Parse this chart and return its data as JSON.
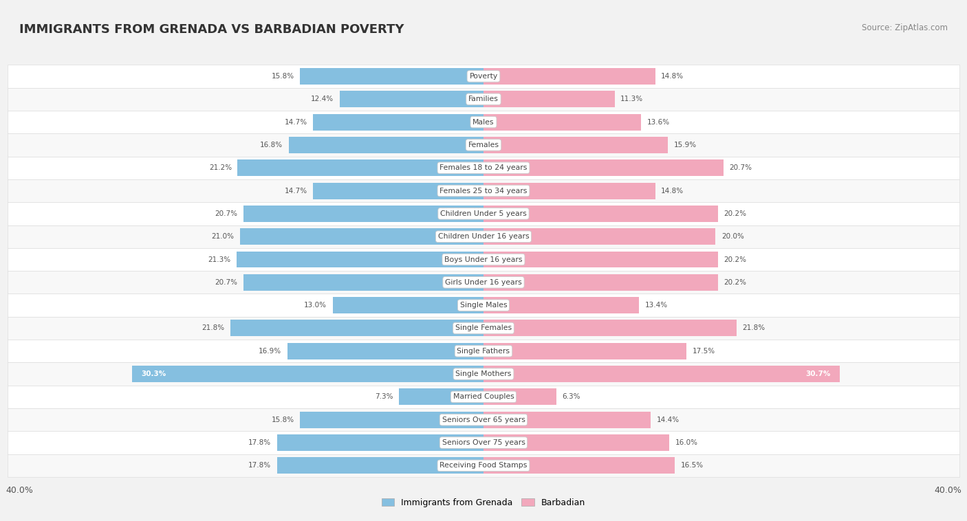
{
  "title": "IMMIGRANTS FROM GRENADA VS BARBADIAN POVERTY",
  "source": "Source: ZipAtlas.com",
  "categories": [
    "Poverty",
    "Families",
    "Males",
    "Females",
    "Females 18 to 24 years",
    "Females 25 to 34 years",
    "Children Under 5 years",
    "Children Under 16 years",
    "Boys Under 16 years",
    "Girls Under 16 years",
    "Single Males",
    "Single Females",
    "Single Fathers",
    "Single Mothers",
    "Married Couples",
    "Seniors Over 65 years",
    "Seniors Over 75 years",
    "Receiving Food Stamps"
  ],
  "grenada_values": [
    15.8,
    12.4,
    14.7,
    16.8,
    21.2,
    14.7,
    20.7,
    21.0,
    21.3,
    20.7,
    13.0,
    21.8,
    16.9,
    30.3,
    7.3,
    15.8,
    17.8,
    17.8
  ],
  "barbadian_values": [
    14.8,
    11.3,
    13.6,
    15.9,
    20.7,
    14.8,
    20.2,
    20.0,
    20.2,
    20.2,
    13.4,
    21.8,
    17.5,
    30.7,
    6.3,
    14.4,
    16.0,
    16.5
  ],
  "grenada_color": "#85BFE0",
  "barbadian_color": "#F2A8BC",
  "grenada_label": "Immigrants from Grenada",
  "barbadian_label": "Barbadian",
  "x_max": 40.0,
  "background_color": "#f2f2f2",
  "bar_bg_color": "#ffffff",
  "row_bg_color": "#f8f8f8"
}
